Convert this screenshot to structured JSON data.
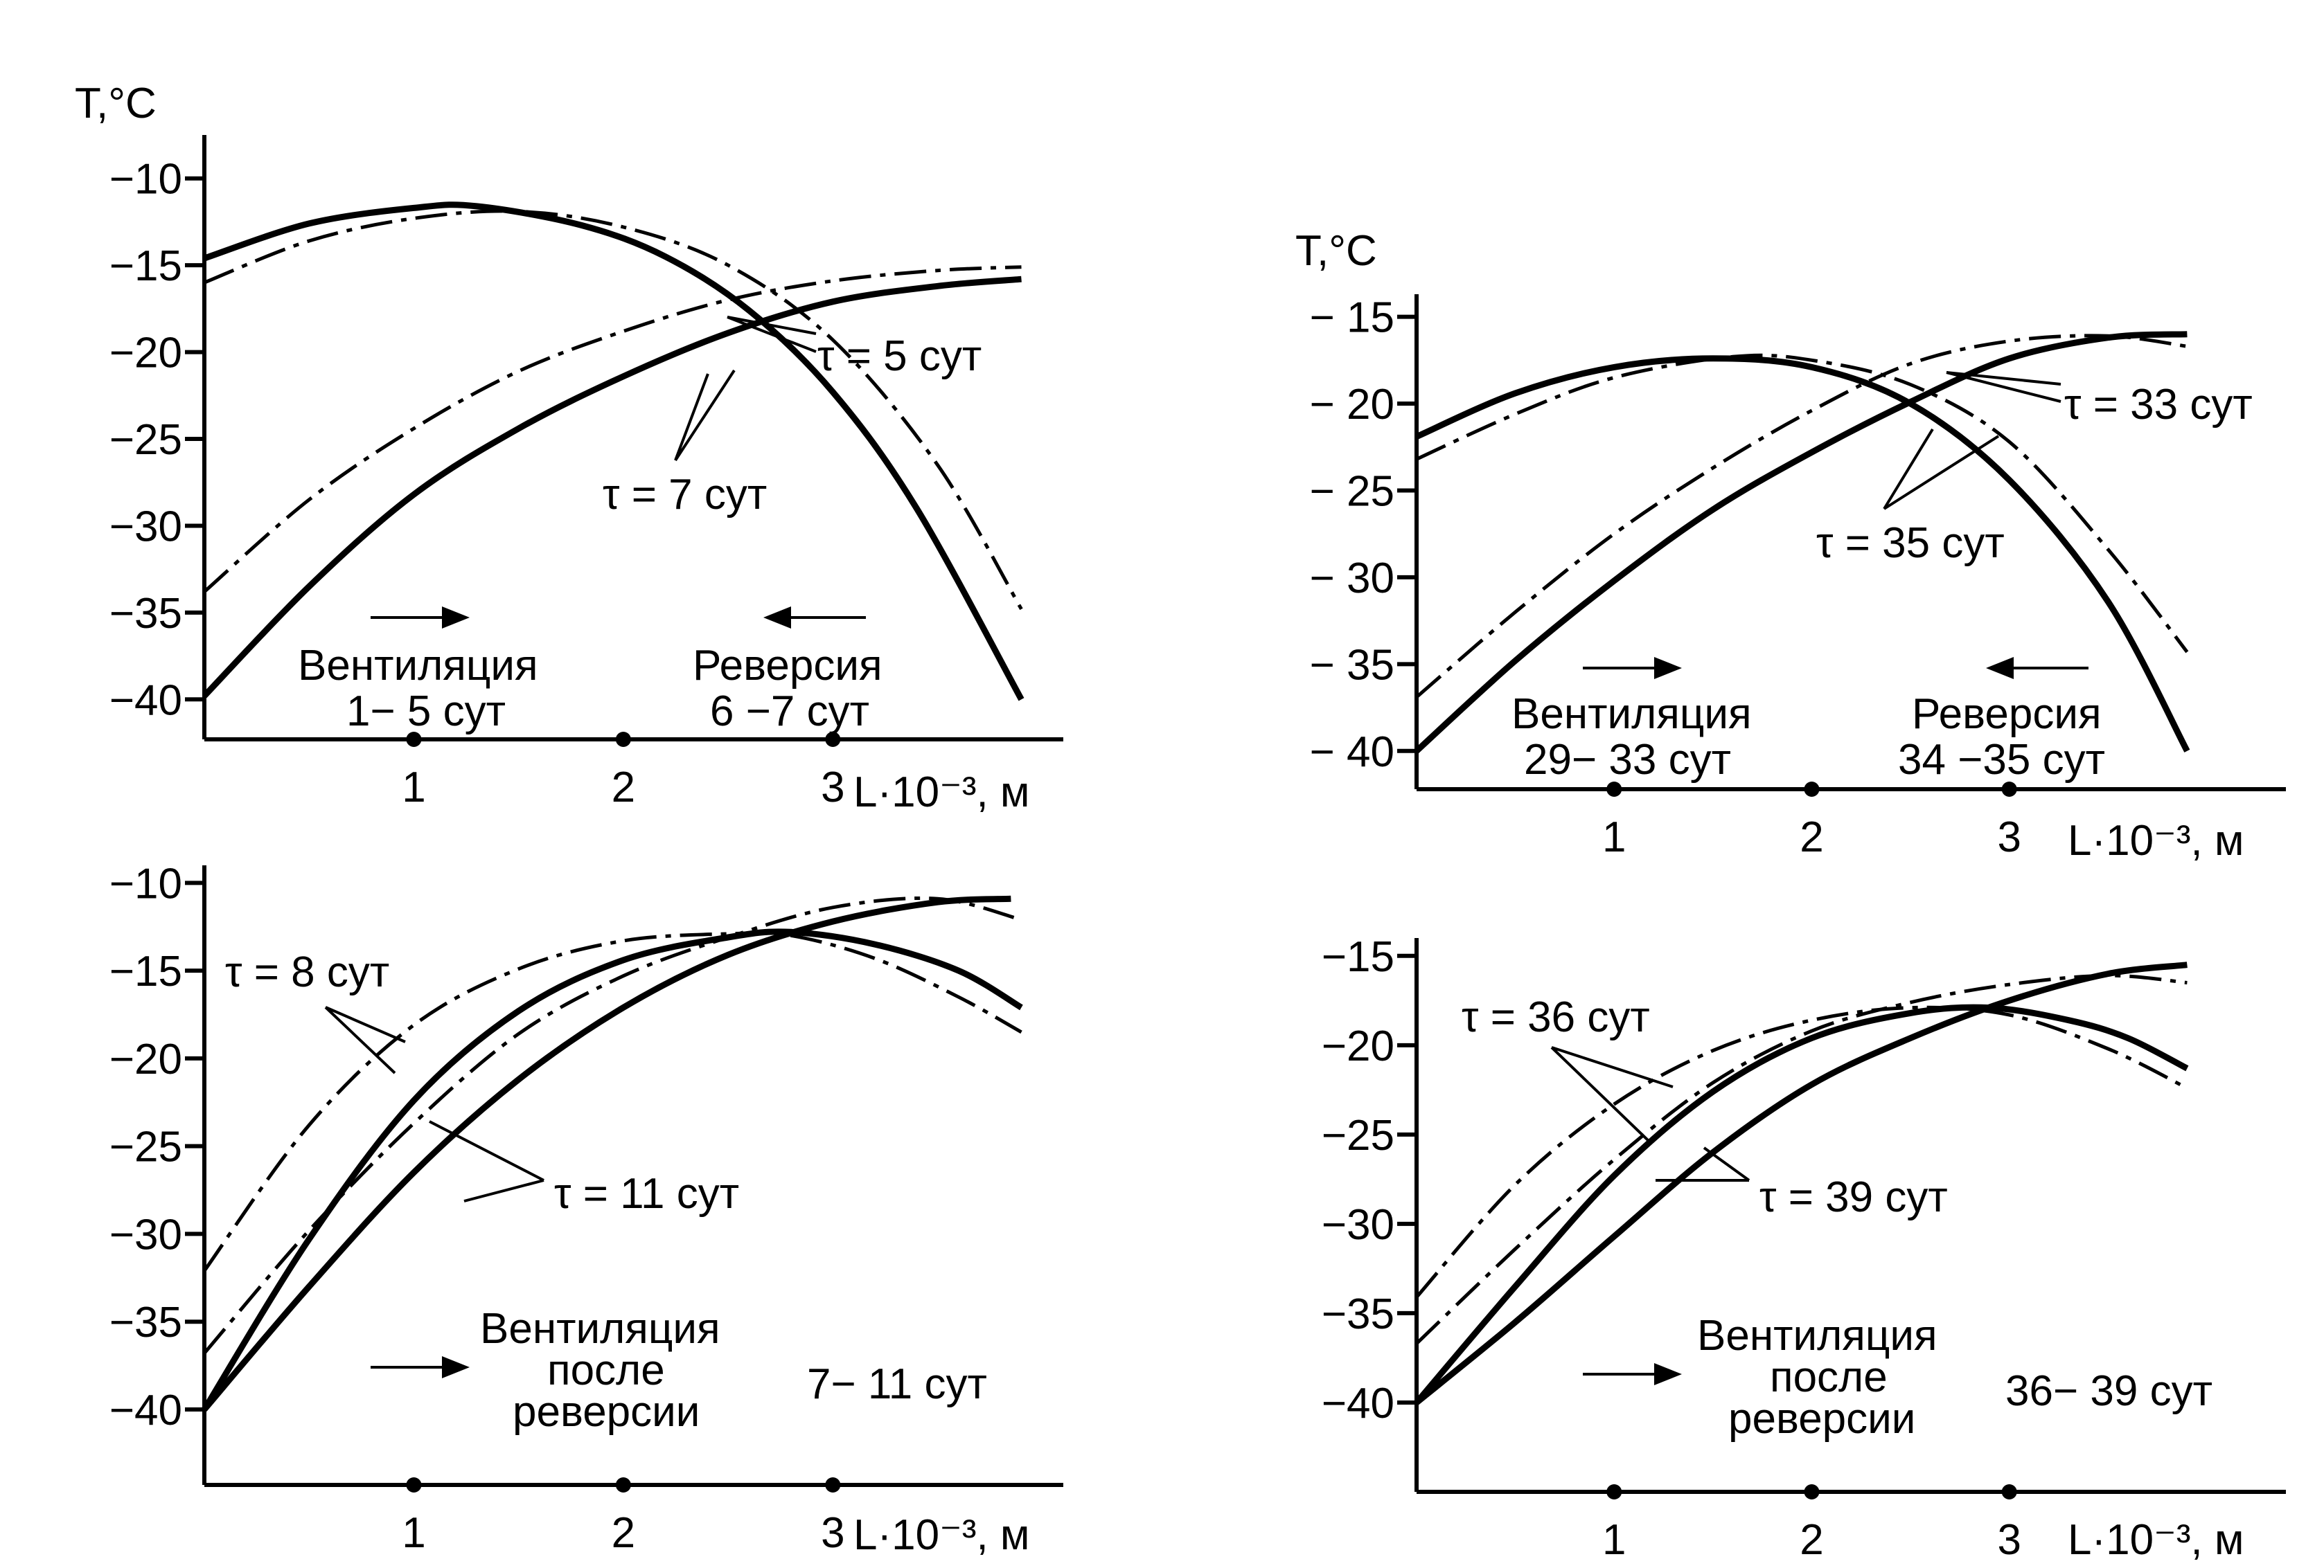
{
  "chart_data": [
    {
      "id": "p1",
      "type": "line",
      "ylabel": "T,°C",
      "xlabel": "L·10⁻³, м",
      "xlim": [
        0,
        4.1
      ],
      "ylim": [
        -42.3,
        -7.5
      ],
      "yticks": [
        -10,
        -15,
        -20,
        -25,
        -30,
        -35,
        -40
      ],
      "ytick_labels": [
        "−10",
        "−15",
        "−20",
        "−25",
        "−30",
        "−35",
        "−40"
      ],
      "xticks": [
        1,
        2,
        3
      ],
      "xtick_labels": [
        "1",
        "2",
        "3"
      ],
      "series": [
        {
          "style": "solid",
          "x": [
            0,
            0.5,
            1.0,
            1.3,
            1.8,
            2.2,
            2.6,
            3.0,
            3.4,
            3.9
          ],
          "y": [
            -14.6,
            -12.6,
            -11.7,
            -11.6,
            -12.7,
            -14.5,
            -17.6,
            -22.3,
            -29.0,
            -40.0
          ]
        },
        {
          "style": "dashdot",
          "x": [
            0,
            0.5,
            1.0,
            1.5,
            2.0,
            2.5,
            3.0,
            3.5,
            3.9
          ],
          "y": [
            -16.0,
            -13.6,
            -12.3,
            -11.9,
            -12.8,
            -15.0,
            -19.3,
            -26.5,
            -34.8
          ]
        },
        {
          "style": "solid",
          "x": [
            0,
            0.5,
            1.0,
            1.5,
            2.0,
            2.5,
            3.0,
            3.5,
            3.9
          ],
          "y": [
            -39.8,
            -33.5,
            -28.2,
            -24.4,
            -21.4,
            -18.9,
            -17.1,
            -16.2,
            -15.8
          ]
        },
        {
          "style": "dashdot",
          "x": [
            0,
            0.5,
            1.0,
            1.5,
            2.0,
            2.5,
            3.0,
            3.5,
            3.9
          ],
          "y": [
            -33.8,
            -28.5,
            -24.4,
            -21.1,
            -18.8,
            -17.0,
            -15.9,
            -15.3,
            -15.1
          ]
        }
      ],
      "annotations": {
        "tau_a": "τ = 5 сут",
        "tau_b": "τ = 7 сут",
        "mode_left_title": "Вентиляция",
        "mode_left_days": "1− 5 сут",
        "mode_right_title": "Реверсия",
        "mode_right_days": "6 −7 сут"
      }
    },
    {
      "id": "p2",
      "type": "line",
      "ylabel": "T,°C",
      "xlabel": "L·10⁻³, м",
      "xlim": [
        0,
        4.4
      ],
      "ylim": [
        -42.2,
        -13.7
      ],
      "yticks": [
        -15,
        -20,
        -25,
        -30,
        -35,
        -40
      ],
      "ytick_labels": [
        "− 15",
        "− 20",
        "− 25",
        "− 30",
        "− 35",
        "− 40"
      ],
      "xticks": [
        1,
        2,
        3
      ],
      "xtick_labels": [
        "1",
        "2",
        "3"
      ],
      "series": [
        {
          "style": "solid",
          "x": [
            0,
            0.5,
            1.0,
            1.5,
            2.0,
            2.5,
            3.0,
            3.5,
            3.9
          ],
          "y": [
            -21.9,
            -19.4,
            -17.9,
            -17.4,
            -17.9,
            -20.0,
            -24.4,
            -31.4,
            -40.0
          ]
        },
        {
          "style": "dashdot",
          "x": [
            0,
            0.5,
            1.0,
            1.6,
            2.0,
            2.5,
            3.0,
            3.5,
            3.9
          ],
          "y": [
            -23.2,
            -20.6,
            -18.5,
            -17.3,
            -17.5,
            -18.9,
            -22.2,
            -28.4,
            -34.3
          ]
        },
        {
          "style": "solid",
          "x": [
            0,
            0.5,
            1.0,
            1.5,
            2.0,
            2.5,
            3.0,
            3.5,
            3.9
          ],
          "y": [
            -40.0,
            -34.8,
            -30.2,
            -26.1,
            -22.8,
            -19.9,
            -17.4,
            -16.2,
            -16.0
          ]
        },
        {
          "style": "dashdot",
          "x": [
            0,
            0.5,
            1.0,
            1.5,
            2.0,
            2.5,
            3.0,
            3.5,
            3.9
          ],
          "y": [
            -36.9,
            -32.0,
            -27.5,
            -23.7,
            -20.4,
            -17.7,
            -16.4,
            -16.1,
            -16.7
          ]
        }
      ],
      "annotations": {
        "tau_a": "τ = 33 сут",
        "tau_b": "τ = 35 сут",
        "mode_left_title": "Вентиляция",
        "mode_left_days": "29− 33 сут",
        "mode_right_title": "Реверсия",
        "mode_right_days": "34 −35 сут"
      }
    },
    {
      "id": "p3",
      "type": "line",
      "xlabel": "L·10⁻³, м",
      "xlim": [
        0,
        4.1
      ],
      "ylim": [
        -44.3,
        -9.0
      ],
      "yticks": [
        -10,
        -15,
        -20,
        -25,
        -30,
        -35,
        -40
      ],
      "ytick_labels": [
        "−10",
        "−15",
        "−20",
        "−25",
        "−30",
        "−35",
        "−40"
      ],
      "xticks": [
        1,
        2,
        3
      ],
      "xtick_labels": [
        "1",
        "2",
        "3"
      ],
      "series": [
        {
          "style": "solid",
          "x": [
            0,
            0.5,
            1.0,
            1.5,
            2.0,
            2.5,
            2.8,
            3.2,
            3.6,
            3.9
          ],
          "y": [
            -40.0,
            -30.3,
            -22.4,
            -17.3,
            -14.4,
            -13.1,
            -12.8,
            -13.5,
            -15.0,
            -17.1
          ]
        },
        {
          "style": "dashdot",
          "x": [
            0,
            0.5,
            1.0,
            1.5,
            2.0,
            2.5,
            2.8,
            3.2,
            3.6,
            3.9
          ],
          "y": [
            -32.1,
            -23.8,
            -18.1,
            -14.9,
            -13.3,
            -12.9,
            -13.0,
            -14.3,
            -16.5,
            -18.5
          ]
        },
        {
          "style": "solid",
          "x": [
            0,
            0.5,
            1.0,
            1.5,
            2.0,
            2.5,
            3.0,
            3.5,
            3.85
          ],
          "y": [
            -40.0,
            -33.0,
            -26.5,
            -21.2,
            -17.1,
            -14.1,
            -12.2,
            -11.1,
            -10.9
          ]
        },
        {
          "style": "dashdot",
          "x": [
            0,
            0.5,
            1.0,
            1.5,
            2.0,
            2.5,
            3.0,
            3.5,
            3.9
          ],
          "y": [
            -36.8,
            -29.8,
            -23.7,
            -18.6,
            -15.3,
            -13.1,
            -11.4,
            -10.9,
            -12.1
          ]
        }
      ],
      "annotations": {
        "tau_a": "τ = 8 сут",
        "tau_b": "τ = 11 сут",
        "mode_title": "Вентиляция",
        "mode_sub1": "после",
        "mode_sub2": "реверсии",
        "mode_days": "7− 11 сут"
      }
    },
    {
      "id": "p4",
      "type": "line",
      "xlabel": "L·10⁻³, м",
      "xlim": [
        0,
        4.4
      ],
      "ylim": [
        -45.0,
        -14.0
      ],
      "yticks": [
        -15,
        -20,
        -25,
        -30,
        -35,
        -40
      ],
      "ytick_labels": [
        "−15",
        "−20",
        "−25",
        "−30",
        "−35",
        "−40"
      ],
      "xticks": [
        1,
        2,
        3
      ],
      "xtick_labels": [
        "1",
        "2",
        "3"
      ],
      "series": [
        {
          "style": "solid",
          "x": [
            0,
            0.5,
            1.0,
            1.5,
            2.0,
            2.5,
            2.9,
            3.3,
            3.6,
            3.9
          ],
          "y": [
            -40.0,
            -33.5,
            -27.3,
            -22.6,
            -19.6,
            -18.2,
            -17.9,
            -18.6,
            -19.6,
            -21.3
          ]
        },
        {
          "style": "dashdot",
          "x": [
            0,
            0.5,
            1.0,
            1.5,
            2.0,
            2.5,
            3.0,
            3.5,
            3.9
          ],
          "y": [
            -34.1,
            -27.8,
            -23.3,
            -20.3,
            -18.6,
            -17.9,
            -18.3,
            -20.2,
            -22.4
          ]
        },
        {
          "style": "solid",
          "x": [
            0,
            0.5,
            1.0,
            1.5,
            2.0,
            2.5,
            3.0,
            3.5,
            3.9
          ],
          "y": [
            -40.0,
            -35.5,
            -30.7,
            -26.0,
            -22.2,
            -19.6,
            -17.5,
            -16.0,
            -15.5
          ]
        },
        {
          "style": "dashdot",
          "x": [
            0,
            0.5,
            1.0,
            1.5,
            2.0,
            2.5,
            3.0,
            3.5,
            3.9
          ],
          "y": [
            -36.7,
            -31.4,
            -26.4,
            -22.1,
            -19.2,
            -17.6,
            -16.6,
            -16.1,
            -16.5
          ]
        }
      ],
      "annotations": {
        "tau_a": "τ = 36 сут",
        "tau_b": "τ = 39 сут",
        "mode_title": "Вентиляция",
        "mode_sub1": "после",
        "mode_sub2": "реверсии",
        "mode_days": "36− 39 сут"
      }
    }
  ]
}
